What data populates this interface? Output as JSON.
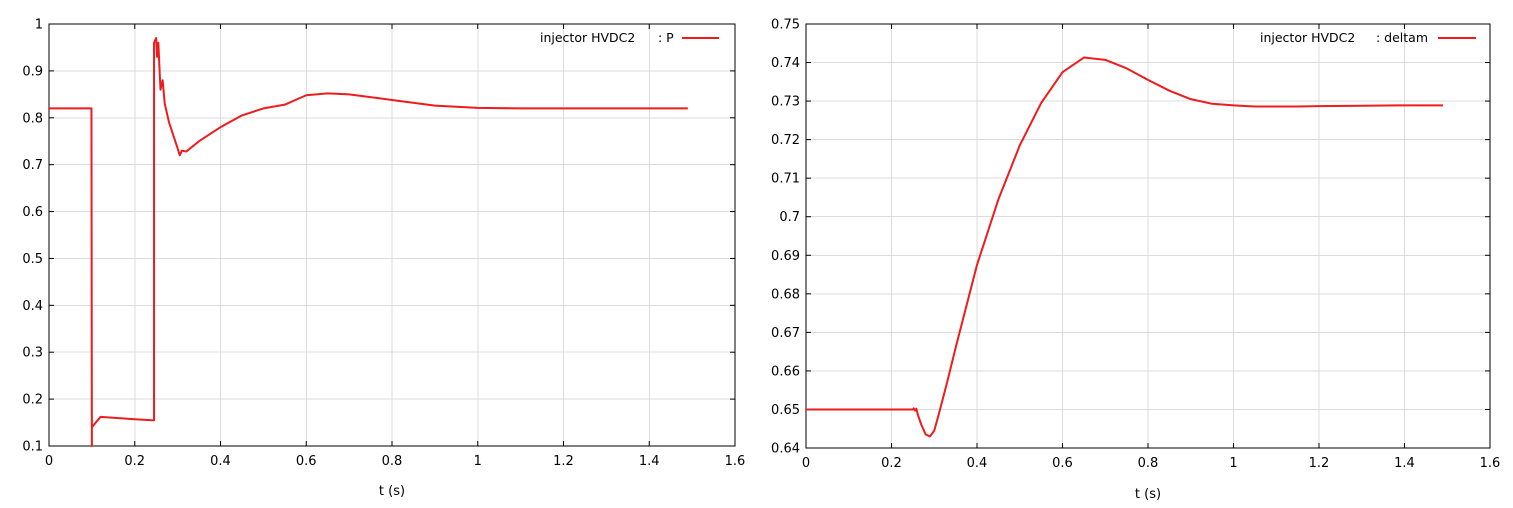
{
  "chart_data": [
    {
      "type": "line",
      "legend": {
        "prefix": "injector HVDC2",
        "label": ": P",
        "color": "#ee1c1c",
        "placement": "top-right"
      },
      "xlabel": "t (s)",
      "ylabel": "",
      "xlim": [
        0,
        1.6
      ],
      "ylim": [
        0.1,
        1.0
      ],
      "xticks": [
        "0",
        "0.2",
        "0.4",
        "0.6",
        "0.8",
        "1",
        "1.2",
        "1.4",
        "1.6"
      ],
      "yticks": [
        "0.1",
        "0.2",
        "0.3",
        "0.4",
        "0.5",
        "0.6",
        "0.7",
        "0.8",
        "0.9",
        "1"
      ],
      "grid": true,
      "series": [
        {
          "name": ": P",
          "color": "#ee1c1c",
          "x": [
            0,
            0.099,
            0.1,
            0.1,
            0.1,
            0.12,
            0.2,
            0.24,
            0.245,
            0.245,
            0.25,
            0.252,
            0.255,
            0.26,
            0.265,
            0.27,
            0.28,
            0.3,
            0.305,
            0.31,
            0.32,
            0.35,
            0.4,
            0.45,
            0.5,
            0.55,
            0.58,
            0.6,
            0.65,
            0.7,
            0.8,
            0.9,
            1.0,
            1.1,
            1.2,
            1.3,
            1.4,
            1.49
          ],
          "y": [
            0.82,
            0.82,
            0.1,
            0.14,
            0.14,
            0.162,
            0.157,
            0.155,
            0.155,
            0.96,
            0.97,
            0.93,
            0.96,
            0.86,
            0.88,
            0.83,
            0.79,
            0.735,
            0.72,
            0.73,
            0.728,
            0.75,
            0.78,
            0.805,
            0.82,
            0.828,
            0.84,
            0.848,
            0.852,
            0.85,
            0.838,
            0.826,
            0.821,
            0.82,
            0.82,
            0.82,
            0.82,
            0.82
          ]
        }
      ]
    },
    {
      "type": "line",
      "legend": {
        "prefix": "injector HVDC2",
        "label": ": deltam",
        "color": "#ee1c1c",
        "placement": "top-right"
      },
      "xlabel": "t (s)",
      "ylabel": "",
      "xlim": [
        0,
        1.6
      ],
      "ylim": [
        0.64,
        0.75
      ],
      "xticks": [
        "0",
        "0.2",
        "0.4",
        "0.6",
        "0.8",
        "1",
        "1.2",
        "1.4",
        "1.6"
      ],
      "yticks": [
        "0.64",
        "0.65",
        "0.66",
        "0.67",
        "0.68",
        "0.69",
        "0.7",
        "0.71",
        "0.72",
        "0.73",
        "0.74",
        "0.75"
      ],
      "grid": true,
      "series": [
        {
          "name": ": deltam",
          "color": "#ee1c1c",
          "x": [
            0,
            0.1,
            0.2,
            0.25,
            0.252,
            0.255,
            0.258,
            0.262,
            0.27,
            0.28,
            0.29,
            0.3,
            0.31,
            0.33,
            0.35,
            0.4,
            0.45,
            0.5,
            0.55,
            0.6,
            0.65,
            0.7,
            0.75,
            0.8,
            0.85,
            0.9,
            0.95,
            1.0,
            1.05,
            1.1,
            1.15,
            1.2,
            1.3,
            1.4,
            1.49
          ],
          "y": [
            0.65,
            0.65,
            0.65,
            0.65,
            0.6503,
            0.6497,
            0.6502,
            0.6485,
            0.646,
            0.6435,
            0.643,
            0.6445,
            0.6485,
            0.657,
            0.666,
            0.6875,
            0.7045,
            0.7185,
            0.7295,
            0.7375,
            0.7413,
            0.7407,
            0.7385,
            0.7355,
            0.7327,
            0.7305,
            0.7293,
            0.7289,
            0.7286,
            0.7286,
            0.7286,
            0.7287,
            0.7288,
            0.7289,
            0.7289
          ]
        }
      ]
    }
  ]
}
